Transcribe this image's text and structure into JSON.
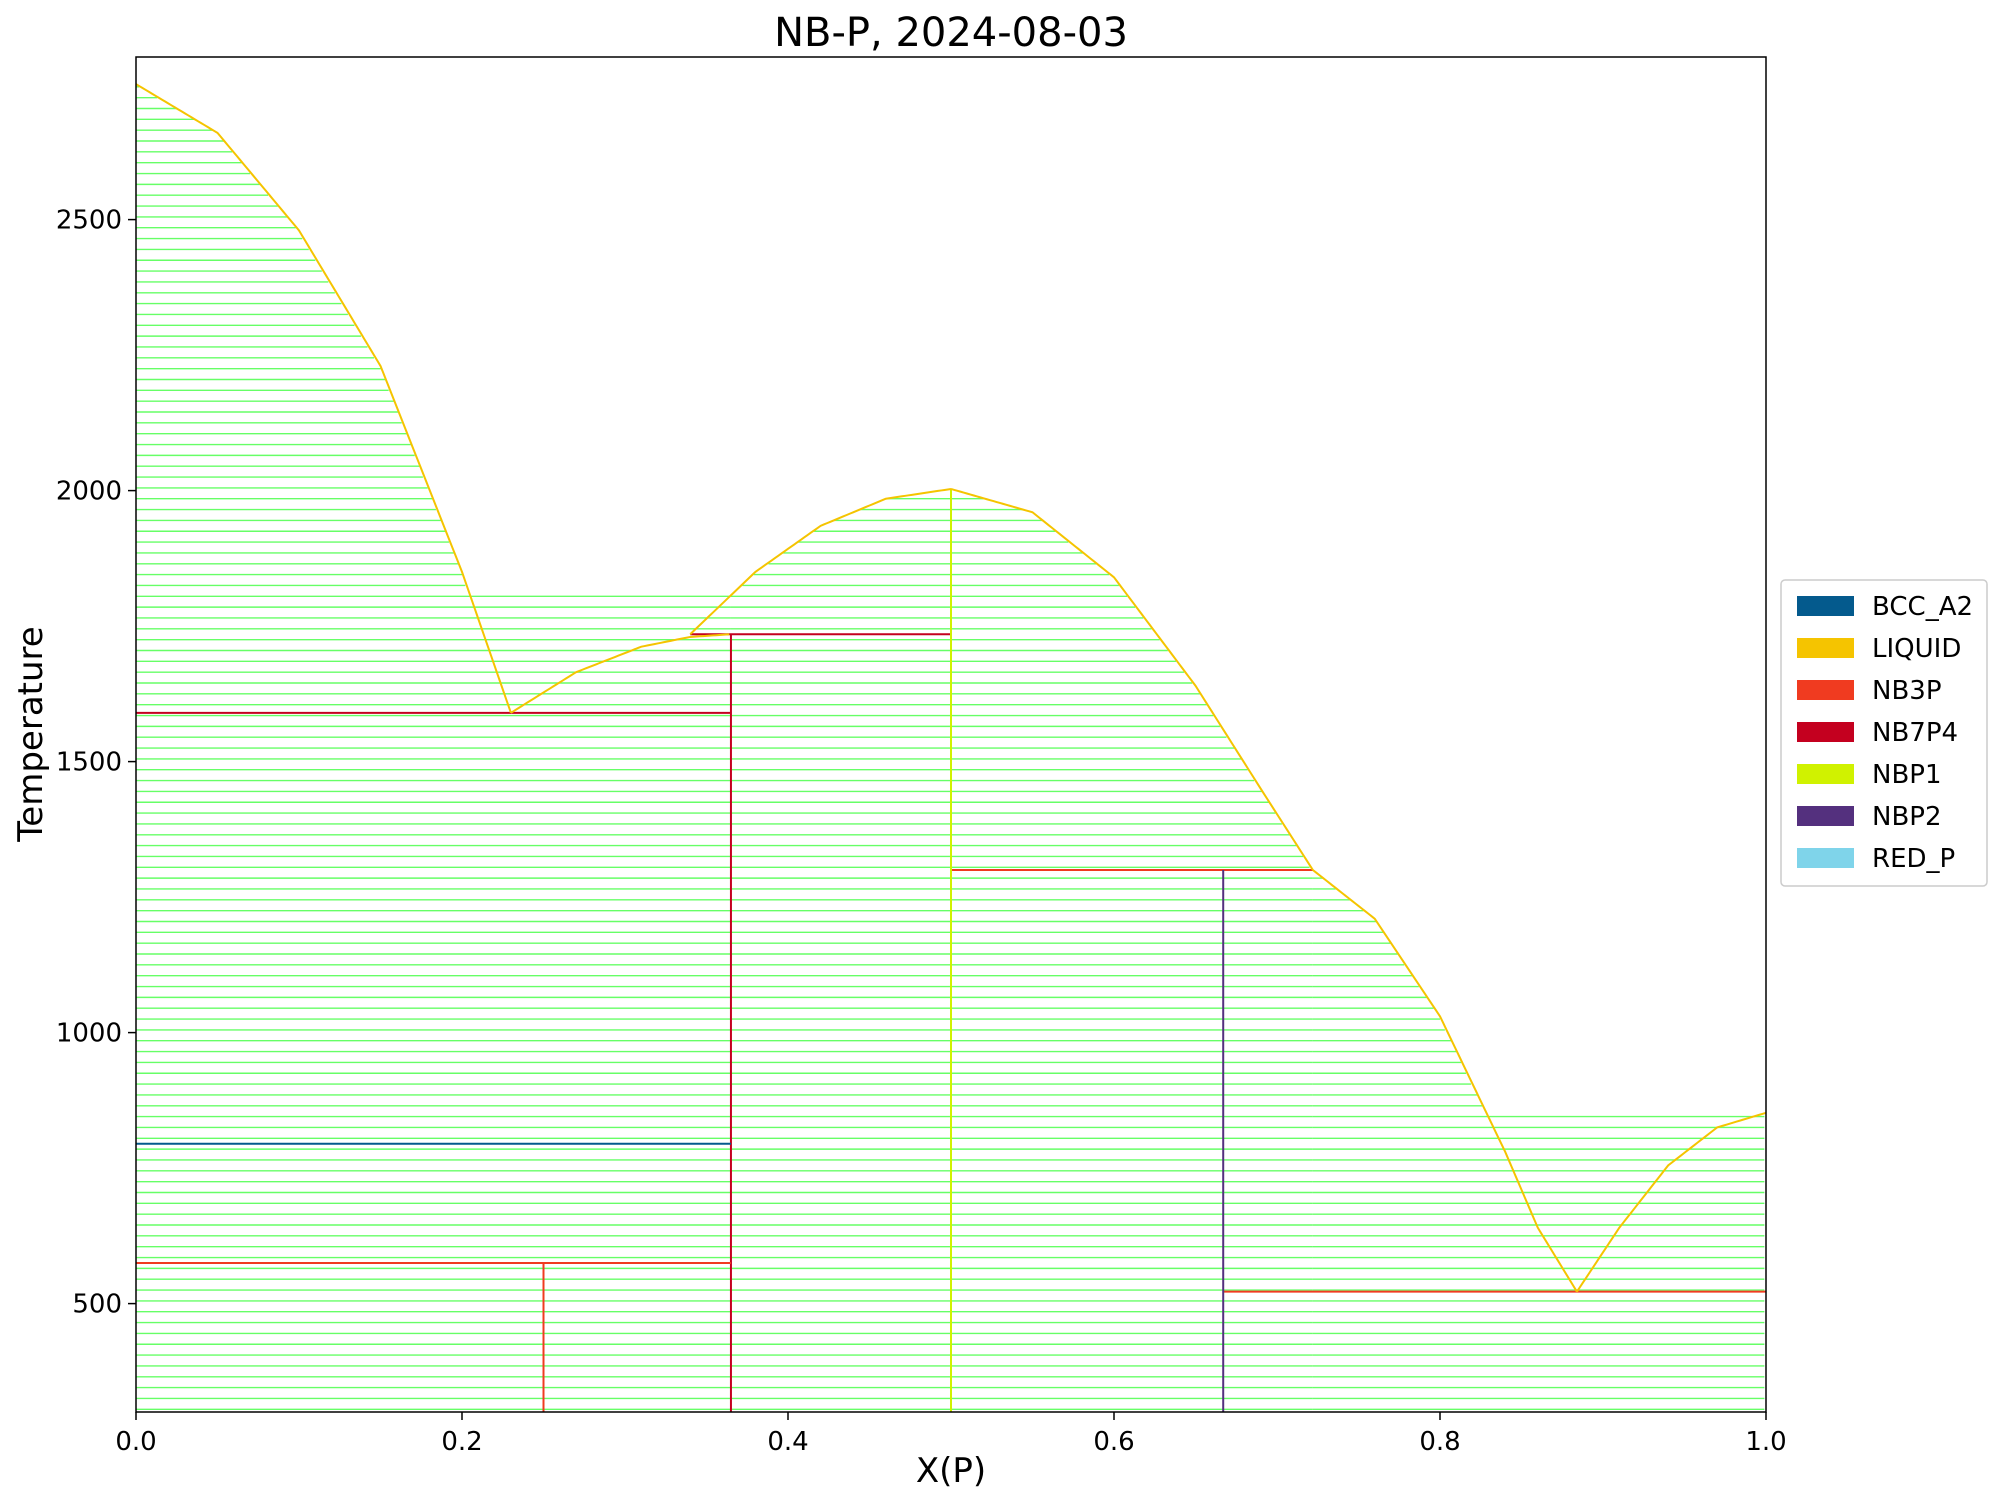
{
  "chart_data": {
    "type": "line",
    "title": "NB-P, 2024-08-03",
    "xlabel": "X(P)",
    "ylabel": "Temperature",
    "xlim": [
      0.0,
      1.0
    ],
    "ylim": [
      300,
      2800
    ],
    "xticks": [
      0.0,
      0.2,
      0.4,
      0.6,
      0.8,
      1.0
    ],
    "xtick_labels": [
      "0.0",
      "0.2",
      "0.4",
      "0.6",
      "0.8",
      "1.0"
    ],
    "yticks": [
      500,
      1000,
      1500,
      2000,
      2500
    ],
    "ytick_labels": [
      "500",
      "1000",
      "1500",
      "2000",
      "2500"
    ],
    "grid": false,
    "legend_position": "right",
    "legend": [
      {
        "name": "BCC_A2",
        "color": "#045a8d"
      },
      {
        "name": "LIQUID",
        "color": "#f5c400"
      },
      {
        "name": "NB3P",
        "color": "#f03b20"
      },
      {
        "name": "NB7P4",
        "color": "#c4001f"
      },
      {
        "name": "NBP1",
        "color": "#d0f200"
      },
      {
        "name": "NBP2",
        "color": "#54307e"
      },
      {
        "name": "RED_P",
        "color": "#7fd4ea"
      }
    ],
    "tieline_color": "#66ff66",
    "liquidus": [
      {
        "name": "LIQUID",
        "x": [
          0.0,
          0.05,
          0.1,
          0.15,
          0.2,
          0.23
        ],
        "y": [
          2750,
          2660,
          2480,
          2230,
          1850,
          1590
        ]
      },
      {
        "name": "LIQUID",
        "x": [
          0.23,
          0.27,
          0.31,
          0.34,
          0.365
        ],
        "y": [
          1590,
          1665,
          1712,
          1730,
          1735
        ]
      },
      {
        "name": "LIQUID",
        "x": [
          0.34,
          0.38,
          0.42,
          0.46,
          0.5
        ],
        "y": [
          1735,
          1850,
          1935,
          1985,
          2003
        ]
      },
      {
        "name": "LIQUID",
        "x": [
          0.5,
          0.55,
          0.6,
          0.65,
          0.69,
          0.722
        ],
        "y": [
          2003,
          1960,
          1840,
          1640,
          1450,
          1300
        ]
      },
      {
        "name": "LIQUID",
        "x": [
          0.722,
          0.76,
          0.8,
          0.84,
          0.86,
          0.884
        ],
        "y": [
          1300,
          1210,
          1030,
          780,
          640,
          522
        ]
      },
      {
        "name": "LIQUID",
        "x": [
          0.884,
          0.91,
          0.94,
          0.97,
          1.0
        ],
        "y": [
          522,
          640,
          755,
          825,
          852
        ]
      }
    ],
    "phase_boundaries": [
      {
        "name": "NB7P4",
        "x": [
          0.0,
          0.365
        ],
        "y": [
          1590,
          1590
        ]
      },
      {
        "name": "NB7P4",
        "x": [
          0.34,
          0.5
        ],
        "y": [
          1735,
          1735
        ]
      },
      {
        "name": "NB7P4",
        "x": [
          0.365,
          0.365
        ],
        "y": [
          300,
          1735
        ]
      },
      {
        "name": "NB3P",
        "x": [
          0.0,
          0.365
        ],
        "y": [
          575,
          575
        ]
      },
      {
        "name": "NB3P",
        "x": [
          0.25,
          0.25
        ],
        "y": [
          300,
          575
        ]
      },
      {
        "name": "NB3P",
        "x": [
          0.5,
          0.722
        ],
        "y": [
          1300,
          1300
        ]
      },
      {
        "name": "NB3P",
        "x": [
          0.667,
          1.0
        ],
        "y": [
          522,
          522
        ]
      },
      {
        "name": "NBP1",
        "x": [
          0.5,
          0.5
        ],
        "y": [
          300,
          2003
        ]
      },
      {
        "name": "NBP2",
        "x": [
          0.667,
          0.667
        ],
        "y": [
          300,
          1300
        ]
      },
      {
        "name": "BCC_A2",
        "x": [
          0.0,
          0.365
        ],
        "y": [
          795,
          795
        ]
      }
    ]
  }
}
